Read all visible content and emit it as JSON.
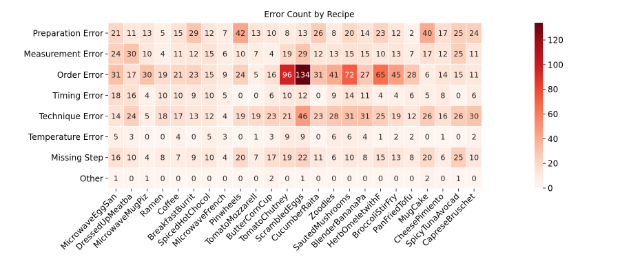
{
  "chart_data": {
    "type": "heatmap",
    "title": "Error Count by Recipe",
    "xlabel": "",
    "ylabel": "",
    "colormap": "Reds",
    "vmin": 0,
    "vmax": 134,
    "colorbar_ticks": [
      0,
      20,
      40,
      60,
      80,
      100,
      120
    ],
    "columns": [
      "MicrowaveEggSan",
      "DressedUpMeatba",
      "MicrowaveMugPiz",
      "Ramen",
      "Coffee",
      "BreakfastBurrit",
      "SpicedHotChocol",
      "MicrowaveFrench",
      "Pinwheels",
      "TomatoMozzarell",
      "ButterCornCup",
      "TomatoChutney",
      "ScrambledEggs",
      "CucumberRaita",
      "Zoodles",
      "SautedMushrooms",
      "BlenderBananaPa",
      "HerbOmeletwithF",
      "BroccoliStirFry",
      "PanFriedTofu",
      "MugCake",
      "CheesePimiento",
      "SpicyTunaAvocad",
      "CapreseBruschet"
    ],
    "rows": [
      "Preparation Error",
      "Measurement Error",
      "Order Error",
      "Timing Error",
      "Technique Error",
      "Temperature Error",
      "Missing Step",
      "Other"
    ],
    "values": [
      [
        21,
        11,
        13,
        5,
        15,
        29,
        12,
        7,
        42,
        13,
        10,
        8,
        13,
        26,
        8,
        20,
        14,
        23,
        12,
        2,
        40,
        17,
        25,
        24
      ],
      [
        24,
        30,
        10,
        4,
        11,
        12,
        15,
        6,
        10,
        7,
        4,
        19,
        29,
        12,
        13,
        15,
        15,
        10,
        13,
        7,
        17,
        12,
        25,
        11
      ],
      [
        31,
        17,
        30,
        19,
        21,
        23,
        15,
        9,
        24,
        5,
        16,
        96,
        134,
        31,
        41,
        72,
        27,
        65,
        45,
        28,
        6,
        14,
        15,
        11
      ],
      [
        18,
        16,
        4,
        10,
        10,
        9,
        10,
        5,
        0,
        0,
        6,
        10,
        12,
        0,
        9,
        14,
        11,
        4,
        4,
        6,
        5,
        8,
        0,
        6
      ],
      [
        14,
        24,
        5,
        18,
        17,
        13,
        12,
        4,
        19,
        19,
        23,
        21,
        46,
        23,
        28,
        31,
        31,
        25,
        19,
        12,
        26,
        16,
        26,
        30
      ],
      [
        5,
        3,
        0,
        0,
        4,
        0,
        5,
        3,
        0,
        1,
        3,
        9,
        9,
        0,
        6,
        6,
        4,
        1,
        2,
        2,
        0,
        1,
        0,
        2
      ],
      [
        16,
        10,
        4,
        8,
        7,
        9,
        10,
        4,
        20,
        7,
        17,
        19,
        22,
        11,
        6,
        10,
        8,
        15,
        13,
        8,
        20,
        6,
        25,
        10
      ],
      [
        1,
        0,
        1,
        0,
        0,
        0,
        0,
        0,
        0,
        0,
        2,
        0,
        1,
        0,
        0,
        0,
        0,
        0,
        0,
        0,
        2,
        0,
        1,
        0
      ]
    ],
    "grid": false,
    "legend": "colorbar-right"
  }
}
